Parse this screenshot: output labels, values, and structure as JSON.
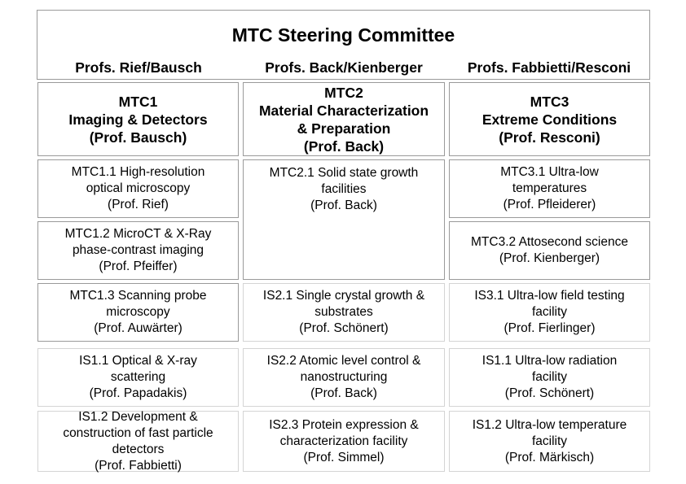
{
  "committee": {
    "title": "MTC Steering Committee",
    "profs": [
      "Profs. Rief/Bausch",
      "Profs. Back/Kienberger",
      "Profs. Fabbietti/Resconi"
    ]
  },
  "columns": [
    {
      "header": [
        "MTC1",
        "Imaging & Detectors",
        "(Prof. Bausch)"
      ],
      "cells": [
        [
          "MTC1.1 High-resolution",
          "optical microscopy",
          "(Prof. Rief)"
        ],
        [
          "MTC1.2 MicroCT & X-Ray",
          "phase-contrast imaging",
          "(Prof. Pfeiffer)"
        ],
        [
          "MTC1.3 Scanning probe",
          "microscopy",
          "(Prof. Auwärter)"
        ],
        [
          "IS1.1 Optical & X-ray",
          "scattering",
          "(Prof. Papadakis)"
        ],
        [
          "IS1.2 Development &",
          "construction of fast particle",
          "detectors",
          "(Prof. Fabbietti)"
        ]
      ]
    },
    {
      "header": [
        "MTC2",
        "Material Characterization",
        "& Preparation",
        "(Prof. Back)"
      ],
      "cells": [
        [
          "MTC2.1 Solid state growth",
          "facilities",
          "(Prof. Back)"
        ],
        [],
        [
          "IS2.1 Single crystal growth &",
          "substrates",
          "(Prof. Schönert)"
        ],
        [
          "IS2.2 Atomic level control &",
          "nanostructuring",
          "(Prof. Back)"
        ],
        [
          "IS2.3 Protein expression &",
          "characterization facility",
          "(Prof. Simmel)"
        ]
      ]
    },
    {
      "header": [
        "MTC3",
        "Extreme Conditions",
        "(Prof. Resconi)"
      ],
      "cells": [
        [
          "MTC3.1 Ultra-low",
          "temperatures",
          "(Prof. Pfleiderer)"
        ],
        [
          "MTC3.2 Attosecond science",
          "(Prof. Kienberger)"
        ],
        [
          "IS3.1 Ultra-low field testing",
          "facility",
          "(Prof. Fierlinger)"
        ],
        [
          "IS1.1 Ultra-low radiation",
          "facility",
          "(Prof. Schönert)"
        ],
        [
          "IS1.2 Ultra-low temperature",
          "facility",
          "(Prof. Märkisch)"
        ]
      ]
    }
  ]
}
